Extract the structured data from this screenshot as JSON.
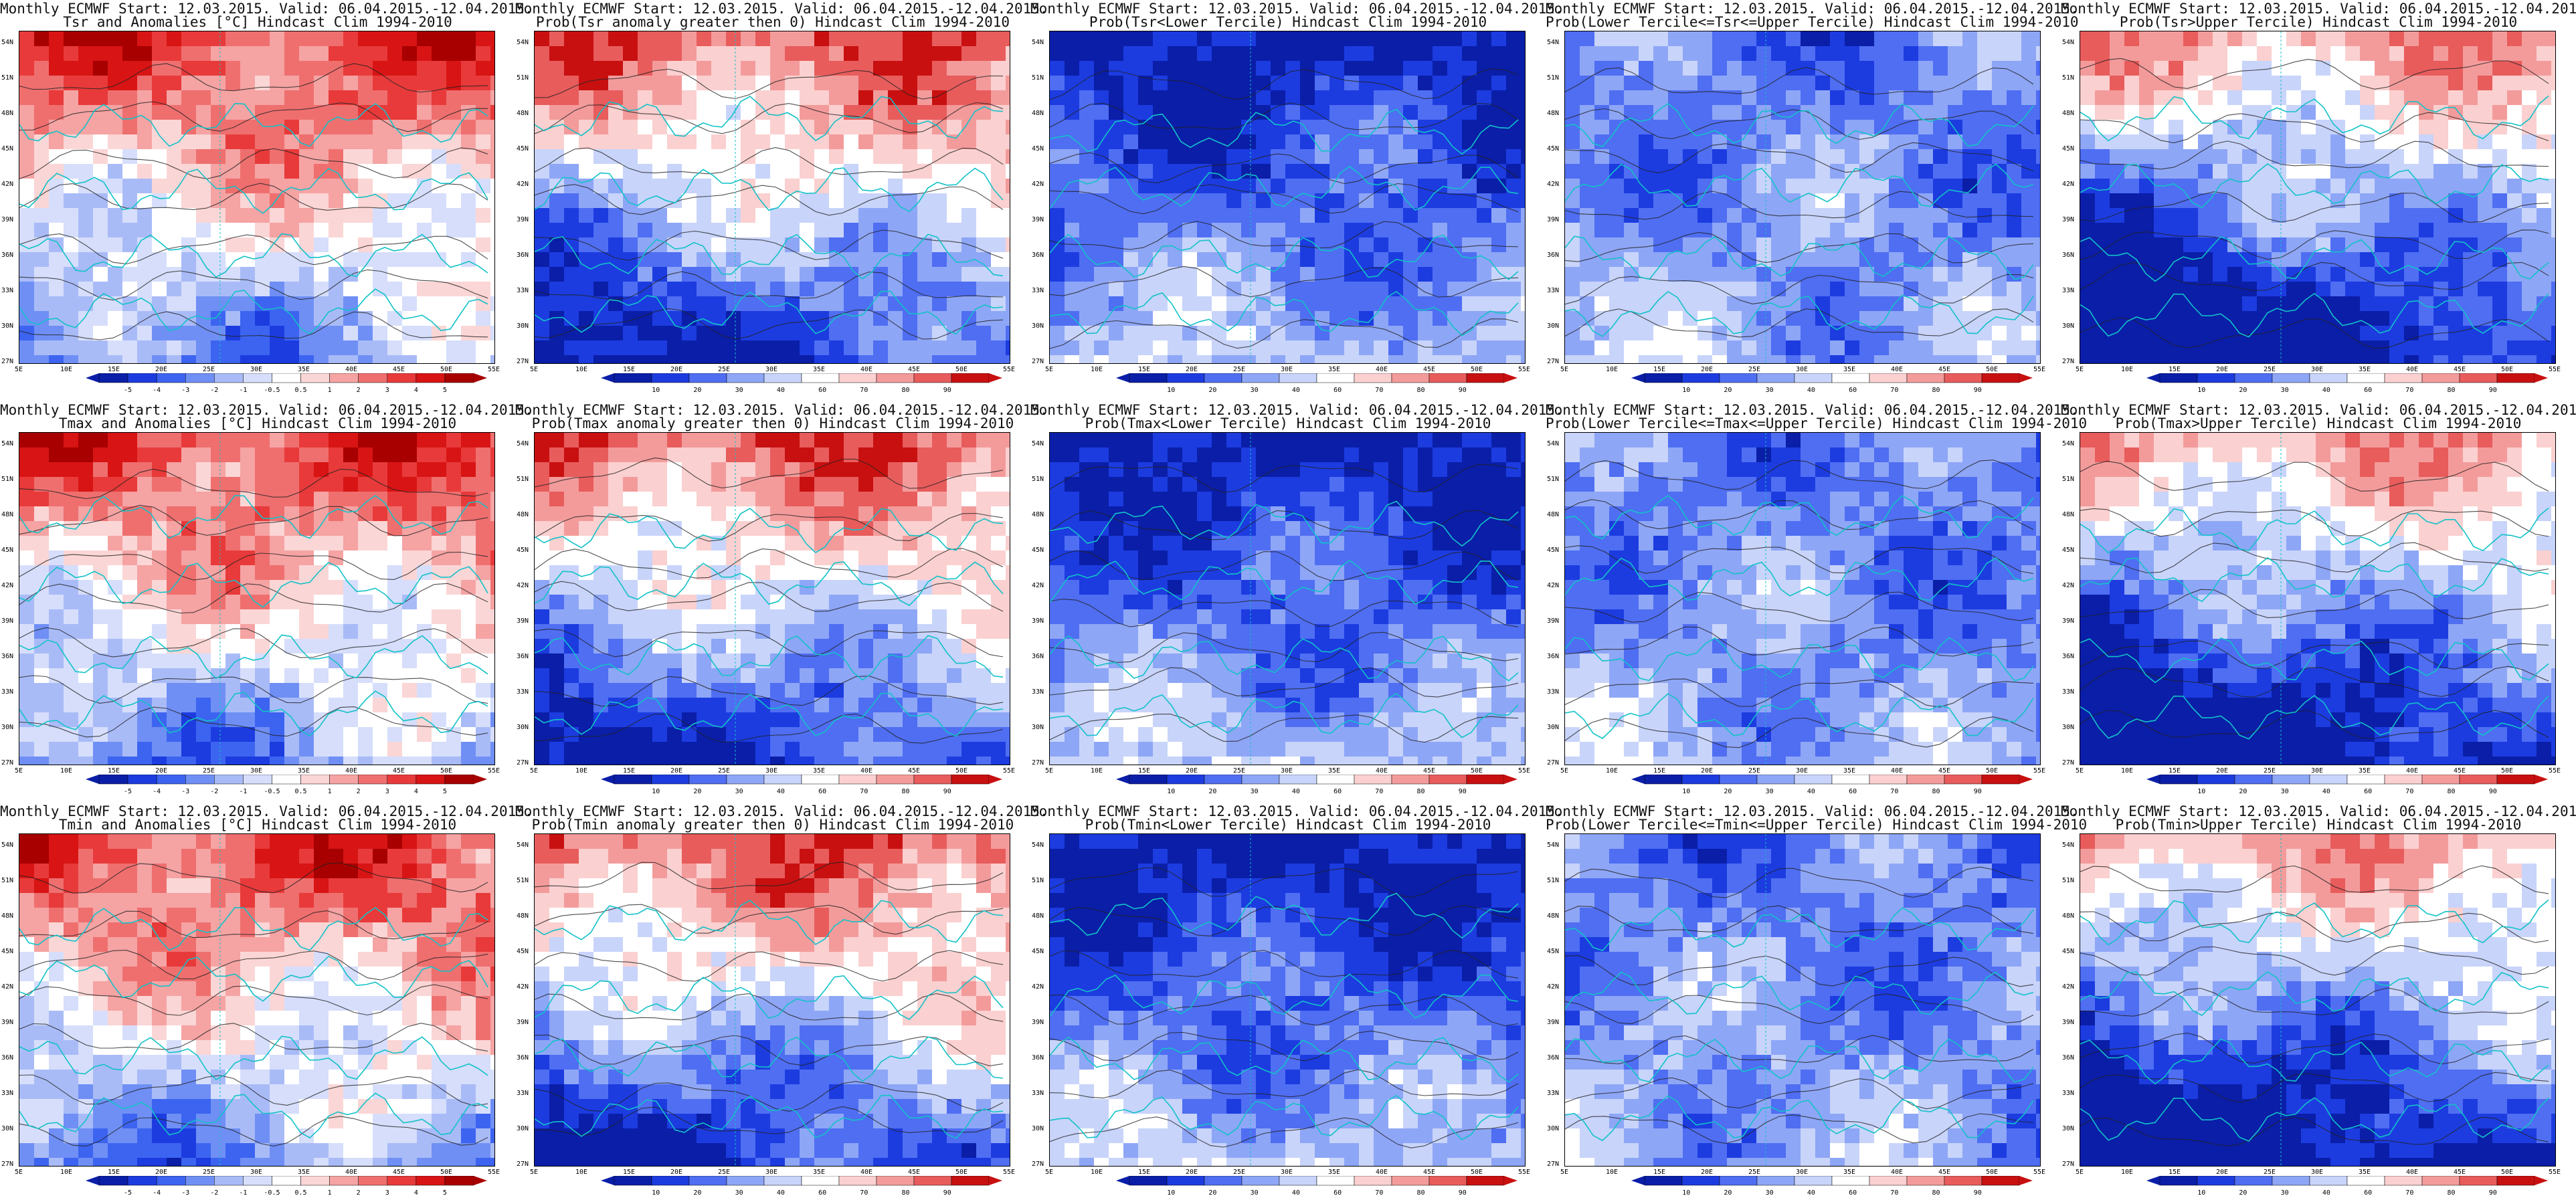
{
  "map_header": "Monthly ECMWF Start: 12.03.2015. Valid: 06.04.2015.-12.04.2015.",
  "latitude_labels": [
    "54N",
    "51N",
    "48N",
    "45N",
    "42N",
    "39N",
    "36N",
    "33N",
    "30N",
    "27N"
  ],
  "longitude_labels": [
    "5E",
    "10E",
    "15E",
    "20E",
    "25E",
    "30E",
    "35E",
    "40E",
    "45E",
    "50E",
    "55E"
  ],
  "anomaly_colorbar": [
    "-5",
    "-4",
    "-3",
    "-2",
    "-1",
    "-0.5",
    "0.5",
    "1",
    "2",
    "3",
    "4",
    "5"
  ],
  "probability_colorbar": [
    "10",
    "20",
    "30",
    "40",
    "60",
    "70",
    "80",
    "90"
  ],
  "colors": {
    "anomaly_palette": [
      "#0a1ea8",
      "#1c3ce0",
      "#3c64f0",
      "#6f8ff5",
      "#a9bbf7",
      "#d6defb",
      "#ffffff",
      "#fbd6d6",
      "#f5a3a3",
      "#ef6f6f",
      "#e83a3a",
      "#d81414",
      "#a80000"
    ],
    "probability_palette": [
      "#0a1ea8",
      "#1c3ce0",
      "#4f6ef2",
      "#8ea6f6",
      "#c8d4fa",
      "#ffffff",
      "#fbd0d0",
      "#f39b9b",
      "#e85c5c",
      "#c81010"
    ],
    "coastline": "#12c2c8",
    "contour": "#222222"
  },
  "rows": [
    {
      "variable": "Tsr",
      "panels": [
        {
          "subtitle": "Tsr and Anomalies [°C] Hindcast Clim 1994-2010",
          "bar": "anomaly"
        },
        {
          "subtitle": "Prob(Tsr anomaly greater then 0) Hindcast Clim 1994-2010",
          "bar": "probability"
        },
        {
          "subtitle": "Prob(Tsr<Lower Tercile) Hindcast Clim 1994-2010",
          "bar": "probability"
        },
        {
          "subtitle": "Prob(Lower Tercile<=Tsr<=Upper Tercile) Hindcast Clim 1994-2010",
          "bar": "probability"
        },
        {
          "subtitle": "Prob(Tsr>Upper Tercile) Hindcast Clim 1994-2010",
          "bar": "probability"
        }
      ]
    },
    {
      "variable": "Tmax",
      "panels": [
        {
          "subtitle": "Tmax and Anomalies [°C] Hindcast Clim 1994-2010",
          "bar": "anomaly"
        },
        {
          "subtitle": "Prob(Tmax anomaly greater then 0) Hindcast Clim 1994-2010",
          "bar": "probability"
        },
        {
          "subtitle": "Prob(Tmax<Lower Tercile) Hindcast Clim 1994-2010",
          "bar": "probability"
        },
        {
          "subtitle": "Prob(Lower Tercile<=Tmax<=Upper Tercile) Hindcast Clim 1994-2010",
          "bar": "probability"
        },
        {
          "subtitle": "Prob(Tmax>Upper Tercile) Hindcast Clim 1994-2010",
          "bar": "probability"
        }
      ]
    },
    {
      "variable": "Tmin",
      "panels": [
        {
          "subtitle": "Tmin and Anomalies [°C] Hindcast Clim 1994-2010",
          "bar": "anomaly"
        },
        {
          "subtitle": "Prob(Tmin anomaly greater then 0) Hindcast Clim 1994-2010",
          "bar": "probability"
        },
        {
          "subtitle": "Prob(Tmin<Lower Tercile) Hindcast Clim 1994-2010",
          "bar": "probability"
        },
        {
          "subtitle": "Prob(Lower Tercile<=Tmin<=Upper Tercile) Hindcast Clim 1994-2010",
          "bar": "probability"
        },
        {
          "subtitle": "Prob(Tmin>Upper Tercile) Hindcast Clim 1994-2010",
          "bar": "probability"
        }
      ]
    }
  ]
}
